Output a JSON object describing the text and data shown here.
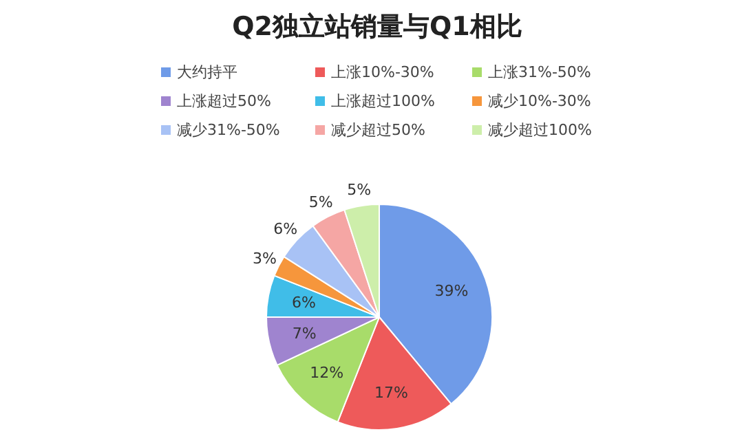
{
  "chart_data": {
    "type": "pie",
    "title": "Q2独立站销量与Q1相比",
    "categories": [
      "大约持平",
      "上涨10%-30%",
      "上涨31%-50%",
      "上涨超过50%",
      "上涨超过100%",
      "减少10%-30%",
      "减少31%-50%",
      "减少超过50%",
      "减少超过100%"
    ],
    "values": [
      39,
      17,
      12,
      7,
      6,
      3,
      6,
      5,
      5
    ],
    "colors": [
      "#6f9be8",
      "#ee5a5a",
      "#a8dc6a",
      "#9f84cf",
      "#40bde8",
      "#f6963c",
      "#a8c2f5",
      "#f5a6a4",
      "#cdeeaa"
    ],
    "value_labels": [
      "39%",
      "17%",
      "12%",
      "7%",
      "6%",
      "3%",
      "6%",
      "5%",
      "5%"
    ],
    "legend": "top"
  }
}
